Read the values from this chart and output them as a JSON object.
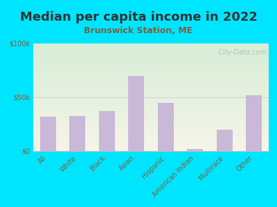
{
  "title": "Median per capita income in 2022",
  "subtitle": "Brunswick Station, ME",
  "categories": [
    "All",
    "White",
    "Black",
    "Asian",
    "Hispanic",
    "American Indian",
    "Multirace",
    "Other"
  ],
  "values": [
    32000,
    33000,
    37000,
    70000,
    45000,
    2000,
    20000,
    52000
  ],
  "bar_color": "#c9b8d8",
  "background_color": "#00e5ff",
  "plot_bg_top_color": "#d8edd8",
  "plot_bg_bottom_color": "#f5f5e8",
  "title_color": "#333333",
  "subtitle_color": "#7a6040",
  "tick_label_color": "#7a6040",
  "watermark_text": " City-Data.com",
  "watermark_color": "#b0b8b0",
  "ylim": [
    0,
    100000
  ],
  "yticks": [
    0,
    50000,
    100000
  ],
  "ytick_labels": [
    "$0",
    "$50k",
    "$100k"
  ],
  "title_fontsize": 13,
  "subtitle_fontsize": 9,
  "tick_fontsize": 7,
  "figsize": [
    4.0,
    3.0
  ],
  "dpi": 100
}
